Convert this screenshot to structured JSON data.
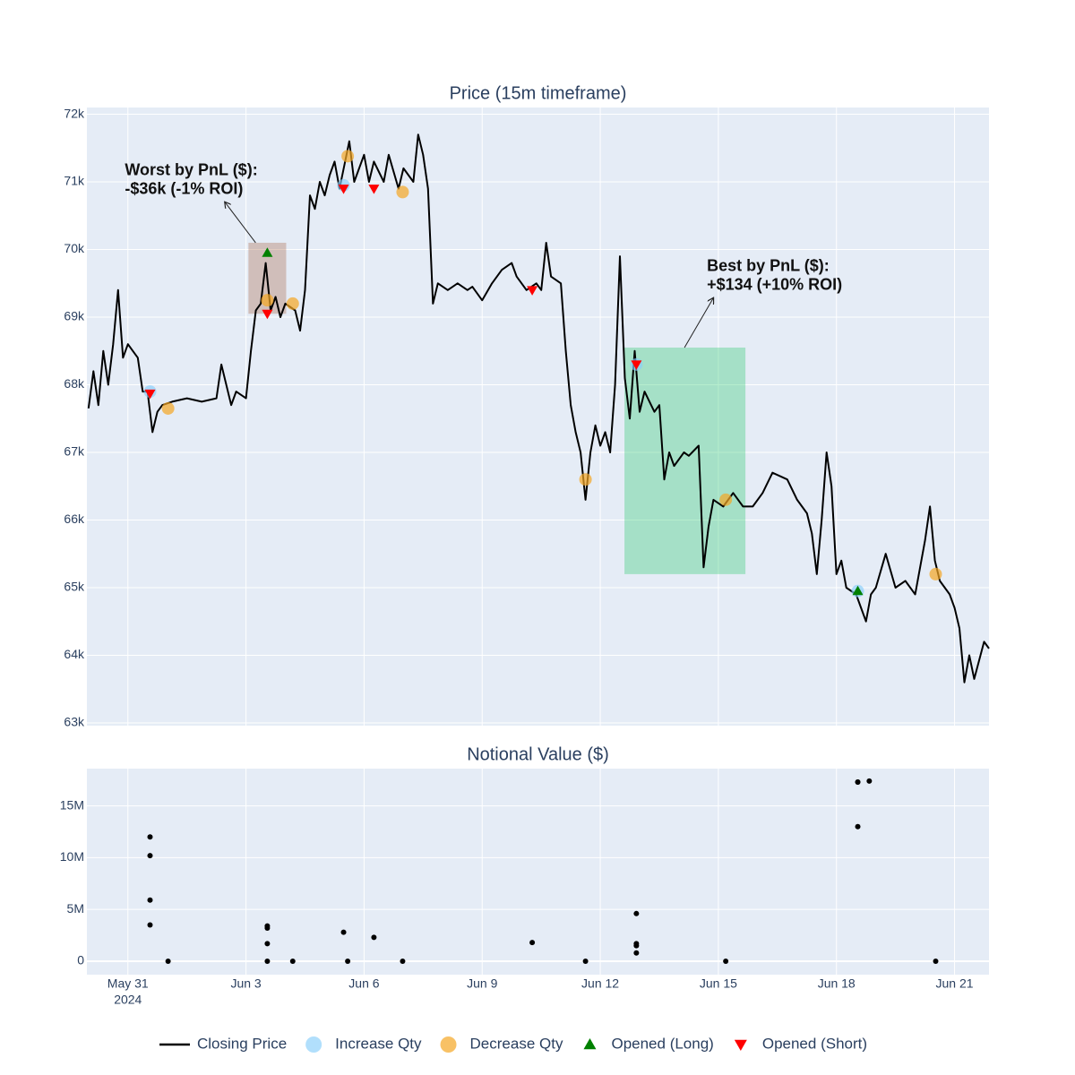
{
  "chart_data": [
    {
      "type": "line",
      "title": "Price (15m timeframe)",
      "xlim": [
        "2024-05-29T23:00",
        "2024-06-21T21:00"
      ],
      "ylim": [
        62960,
        72100
      ],
      "yticks": [
        {
          "value": 63000,
          "label": "63k"
        },
        {
          "value": 64000,
          "label": "64k"
        },
        {
          "value": 65000,
          "label": "65k"
        },
        {
          "value": 66000,
          "label": "66k"
        },
        {
          "value": 67000,
          "label": "67k"
        },
        {
          "value": 68000,
          "label": "68k"
        },
        {
          "value": 69000,
          "label": "69k"
        },
        {
          "value": 70000,
          "label": "70k"
        },
        {
          "value": 71000,
          "label": "71k"
        },
        {
          "value": 72000,
          "label": "72k"
        }
      ],
      "grid": true,
      "legend": "bottom",
      "series": [
        {
          "name": "Closing Price",
          "color": "#000000",
          "mode": "lines",
          "x": [
            "2024-05-30T00:00",
            "2024-05-30T03:00",
            "2024-05-30T06:00",
            "2024-05-30T09:00",
            "2024-05-30T12:00",
            "2024-05-30T15:00",
            "2024-05-30T18:00",
            "2024-05-30T21:00",
            "2024-05-31T00:00",
            "2024-05-31T03:00",
            "2024-05-31T06:00",
            "2024-05-31T09:00",
            "2024-05-31T12:00",
            "2024-05-31T15:00",
            "2024-05-31T18:00",
            "2024-05-31T21:00",
            "2024-06-01T03:00",
            "2024-06-01T12:00",
            "2024-06-01T21:00",
            "2024-06-02T06:00",
            "2024-06-02T09:00",
            "2024-06-02T15:00",
            "2024-06-02T18:00",
            "2024-06-03T00:00",
            "2024-06-03T03:00",
            "2024-06-03T06:00",
            "2024-06-03T09:00",
            "2024-06-03T12:00",
            "2024-06-03T15:00",
            "2024-06-03T18:00",
            "2024-06-03T21:00",
            "2024-06-04T00:00",
            "2024-06-04T06:00",
            "2024-06-04T09:00",
            "2024-06-04T12:00",
            "2024-06-04T15:00",
            "2024-06-04T18:00",
            "2024-06-04T21:00",
            "2024-06-05T00:00",
            "2024-06-05T03:00",
            "2024-06-05T06:00",
            "2024-06-05T09:00",
            "2024-06-05T15:00",
            "2024-06-05T18:00",
            "2024-06-06T00:00",
            "2024-06-06T03:00",
            "2024-06-06T06:00",
            "2024-06-06T12:00",
            "2024-06-06T15:00",
            "2024-06-06T21:00",
            "2024-06-07T00:00",
            "2024-06-07T06:00",
            "2024-06-07T09:00",
            "2024-06-07T12:00",
            "2024-06-07T15:00",
            "2024-06-07T18:00",
            "2024-06-07T21:00",
            "2024-06-08T03:00",
            "2024-06-08T09:00",
            "2024-06-08T15:00",
            "2024-06-08T18:00",
            "2024-06-09T00:00",
            "2024-06-09T06:00",
            "2024-06-09T12:00",
            "2024-06-09T18:00",
            "2024-06-09T21:00",
            "2024-06-10T03:00",
            "2024-06-10T09:00",
            "2024-06-10T12:00",
            "2024-06-10T15:00",
            "2024-06-10T18:00",
            "2024-06-11T00:00",
            "2024-06-11T03:00",
            "2024-06-11T06:00",
            "2024-06-11T09:00",
            "2024-06-11T12:00",
            "2024-06-11T15:00",
            "2024-06-11T18:00",
            "2024-06-11T21:00",
            "2024-06-12T00:00",
            "2024-06-12T03:00",
            "2024-06-12T06:00",
            "2024-06-12T09:00",
            "2024-06-12T12:00",
            "2024-06-12T15:00",
            "2024-06-12T18:00",
            "2024-06-12T21:00",
            "2024-06-13T00:00",
            "2024-06-13T03:00",
            "2024-06-13T09:00",
            "2024-06-13T12:00",
            "2024-06-13T15:00",
            "2024-06-13T18:00",
            "2024-06-13T21:00",
            "2024-06-14T03:00",
            "2024-06-14T06:00",
            "2024-06-14T12:00",
            "2024-06-14T15:00",
            "2024-06-14T18:00",
            "2024-06-14T21:00",
            "2024-06-15T03:00",
            "2024-06-15T09:00",
            "2024-06-15T15:00",
            "2024-06-15T21:00",
            "2024-06-16T03:00",
            "2024-06-16T09:00",
            "2024-06-16T18:00",
            "2024-06-17T00:00",
            "2024-06-17T06:00",
            "2024-06-17T09:00",
            "2024-06-17T12:00",
            "2024-06-17T15:00",
            "2024-06-17T18:00",
            "2024-06-17T21:00",
            "2024-06-18T00:00",
            "2024-06-18T03:00",
            "2024-06-18T06:00",
            "2024-06-18T12:00",
            "2024-06-18T15:00",
            "2024-06-18T18:00",
            "2024-06-18T21:00",
            "2024-06-19T00:00",
            "2024-06-19T06:00",
            "2024-06-19T12:00",
            "2024-06-19T18:00",
            "2024-06-20T00:00",
            "2024-06-20T03:00",
            "2024-06-20T06:00",
            "2024-06-20T09:00",
            "2024-06-20T12:00",
            "2024-06-20T15:00",
            "2024-06-20T21:00",
            "2024-06-21T00:00",
            "2024-06-21T03:00",
            "2024-06-21T06:00",
            "2024-06-21T09:00",
            "2024-06-21T12:00",
            "2024-06-21T18:00",
            "2024-06-21T21:00"
          ],
          "values": [
            67650,
            68200,
            67700,
            68500,
            68000,
            68600,
            69400,
            68400,
            68600,
            68500,
            68400,
            67900,
            67900,
            67300,
            67600,
            67700,
            67750,
            67800,
            67750,
            67800,
            68300,
            67700,
            67900,
            67800,
            68500,
            69100,
            69200,
            69800,
            69100,
            69300,
            69000,
            69200,
            69100,
            68800,
            69400,
            70800,
            70600,
            71000,
            70800,
            71100,
            71300,
            70900,
            71600,
            71000,
            71400,
            71000,
            71300,
            71000,
            71400,
            70900,
            71200,
            71000,
            71700,
            71400,
            70900,
            69200,
            69500,
            69400,
            69500,
            69400,
            69450,
            69250,
            69500,
            69700,
            69800,
            69600,
            69400,
            69500,
            69400,
            70100,
            69600,
            69500,
            68500,
            67700,
            67300,
            67000,
            66300,
            67000,
            67400,
            67100,
            67300,
            67000,
            68000,
            69900,
            68100,
            67500,
            68500,
            67600,
            67900,
            67600,
            67700,
            66600,
            67000,
            66800,
            67000,
            66950,
            67100,
            65300,
            65900,
            66300,
            66200,
            66400,
            66200,
            66200,
            66400,
            66700,
            66600,
            66300,
            66100,
            65800,
            65200,
            66000,
            67000,
            66500,
            65200,
            65400,
            65000,
            64900,
            64700,
            64500,
            64900,
            65000,
            65500,
            65000,
            65100,
            64900,
            65300,
            65700,
            66200,
            65400,
            65100,
            64900,
            64700,
            64400,
            63600,
            64000,
            63650,
            64200,
            64100
          ]
        },
        {
          "name": "Increase Qty",
          "color": "rgba(135,206,250,0.65)",
          "mode": "markers",
          "symbol": "circle",
          "x": [
            "2024-05-31T13:30",
            "2024-06-05T11:30",
            "2024-06-12T22:00",
            "2024-06-18T13:00"
          ],
          "values": [
            67900,
            70950,
            68300,
            64950
          ]
        },
        {
          "name": "Decrease Qty",
          "color": "rgba(245,166,35,0.7)",
          "mode": "markers",
          "symbol": "circle",
          "x": [
            "2024-06-01T00:30",
            "2024-06-03T13:00",
            "2024-06-04T04:30",
            "2024-06-05T14:00",
            "2024-06-06T23:30",
            "2024-06-11T15:00",
            "2024-06-15T04:30",
            "2024-06-20T12:30"
          ],
          "values": [
            67650,
            69250,
            69200,
            71380,
            70850,
            66600,
            66300,
            65200
          ]
        },
        {
          "name": "Opened (Long)",
          "color": "#008000",
          "mode": "markers",
          "symbol": "triangle-up",
          "x": [
            "2024-06-03T13:00",
            "2024-06-18T13:00"
          ],
          "values": [
            69950,
            64950
          ]
        },
        {
          "name": "Opened (Short)",
          "color": "#ff0000",
          "mode": "markers",
          "symbol": "triangle-down",
          "x": [
            "2024-05-31T13:30",
            "2024-06-03T13:00",
            "2024-06-05T11:30",
            "2024-06-06T06:00",
            "2024-06-10T06:30",
            "2024-06-12T22:00"
          ],
          "values": [
            67870,
            69050,
            70900,
            70900,
            69400,
            68300
          ]
        }
      ],
      "annotations": [
        {
          "text": [
            "Worst by PnL ($):",
            "-$36k (-1% ROI)"
          ],
          "color": "rgba(160,82,45,0.3)",
          "x0": "2024-06-03T01:30",
          "x1": "2024-06-04T00:30",
          "y0": 69050,
          "y1": 70100
        },
        {
          "text": [
            "Best by PnL ($):",
            "+$134 (+10% ROI)"
          ],
          "color": "rgba(46,204,113,0.35)",
          "x0": "2024-06-12T14:45",
          "x1": "2024-06-15T16:30",
          "y0": 65200,
          "y1": 68550
        }
      ]
    },
    {
      "type": "scatter",
      "title": "Notional Value ($)",
      "xlim": [
        "2024-05-29T23:00",
        "2024-06-21T21:00"
      ],
      "xticks": [
        {
          "value": "2024-05-31",
          "label": "May 31",
          "sublabel": "2024"
        },
        {
          "value": "2024-06-03",
          "label": "Jun 3"
        },
        {
          "value": "2024-06-06",
          "label": "Jun 6"
        },
        {
          "value": "2024-06-09",
          "label": "Jun 9"
        },
        {
          "value": "2024-06-12",
          "label": "Jun 12"
        },
        {
          "value": "2024-06-15",
          "label": "Jun 15"
        },
        {
          "value": "2024-06-18",
          "label": "Jun 18"
        },
        {
          "value": "2024-06-21",
          "label": "Jun 21"
        }
      ],
      "ylim": [
        -1300000,
        18600000
      ],
      "yticks": [
        0,
        {
          "value": 5000000,
          "label": "5M"
        },
        {
          "value": 10000000,
          "label": "10M"
        },
        {
          "value": 15000000,
          "label": "15M"
        }
      ],
      "grid": true,
      "color": "#000000",
      "x": [
        "2024-05-31T13:30",
        "2024-05-31T13:30",
        "2024-05-31T13:30",
        "2024-05-31T13:30",
        "2024-06-01T00:30",
        "2024-06-03T13:00",
        "2024-06-03T13:00",
        "2024-06-03T13:00",
        "2024-06-03T13:00",
        "2024-06-04T04:30",
        "2024-06-05T11:30",
        "2024-06-05T14:00",
        "2024-06-06T06:00",
        "2024-06-06T23:30",
        "2024-06-10T06:30",
        "2024-06-11T15:00",
        "2024-06-12T22:00",
        "2024-06-12T22:00",
        "2024-06-12T22:00",
        "2024-06-12T22:00",
        "2024-06-15T04:30",
        "2024-06-18T13:00",
        "2024-06-18T13:00",
        "2024-06-18T13:00",
        "2024-06-18T20:00",
        "2024-06-20T12:30"
      ],
      "values": [
        12000000,
        10200000,
        5900000,
        3500000,
        0,
        3400000,
        3200000,
        1700000,
        0,
        0,
        2800000,
        0,
        2300000,
        0,
        1800000,
        0,
        4600000,
        1700000,
        1500000,
        800000,
        0,
        17300000,
        17300000,
        13000000,
        17400000,
        0
      ]
    }
  ]
}
